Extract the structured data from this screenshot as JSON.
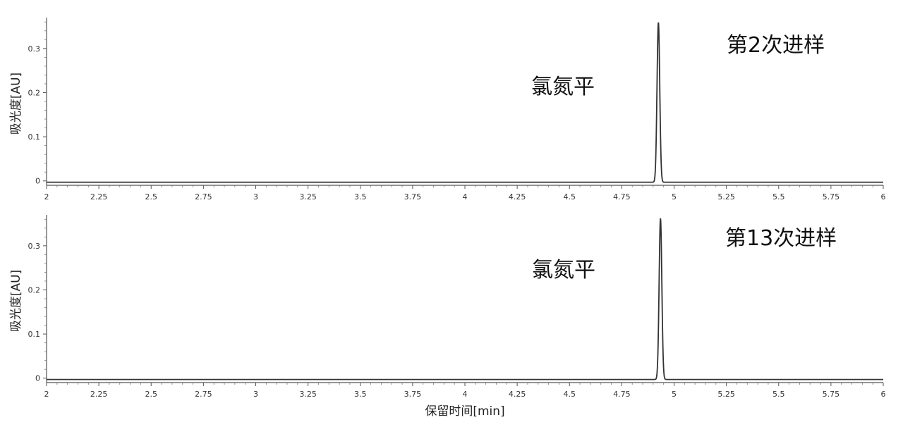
{
  "chart_data": [
    {
      "type": "line",
      "annotation": "第2次进样",
      "peak_label": "氯氮平",
      "ylabel": "吸光度[AU]",
      "xlim": [
        2,
        6
      ],
      "ylim": [
        -0.01,
        0.37
      ],
      "x_ticks": [
        "2",
        "2.25",
        "2.5",
        "2.75",
        "3",
        "3.25",
        "3.5",
        "3.75",
        "4",
        "4.25",
        "4.5",
        "4.75",
        "5",
        "5.25",
        "5.5",
        "5.75",
        "6"
      ],
      "y_ticks": [
        "0",
        "0.1",
        "0.2",
        "0.3"
      ],
      "peak": {
        "x": 4.925,
        "height": 0.362,
        "sigma": 0.0065,
        "baseline": -0.003
      }
    },
    {
      "type": "line",
      "annotation": "第13次进样",
      "peak_label": "氯氮平",
      "ylabel": "吸光度[AU]",
      "xlabel": "保留时间[min]",
      "xlim": [
        2,
        6
      ],
      "ylim": [
        -0.01,
        0.37
      ],
      "x_ticks": [
        "2",
        "2.25",
        "2.5",
        "2.75",
        "3",
        "3.25",
        "3.5",
        "3.75",
        "4",
        "4.25",
        "4.5",
        "4.75",
        "5",
        "5.25",
        "5.5",
        "5.75",
        "6"
      ],
      "y_ticks": [
        "0",
        "0.1",
        "0.2",
        "0.3"
      ],
      "peak": {
        "x": 4.935,
        "height": 0.365,
        "sigma": 0.0065,
        "baseline": -0.003
      }
    }
  ]
}
